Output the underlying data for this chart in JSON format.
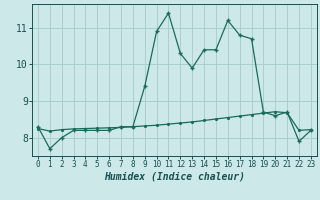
{
  "title": "",
  "xlabel": "Humidex (Indice chaleur)",
  "ylabel": "",
  "x_values": [
    0,
    1,
    2,
    3,
    4,
    5,
    6,
    7,
    8,
    9,
    10,
    11,
    12,
    13,
    14,
    15,
    16,
    17,
    18,
    19,
    20,
    21,
    22,
    23
  ],
  "line1_y": [
    8.3,
    7.7,
    8.0,
    8.2,
    8.2,
    8.2,
    8.2,
    8.3,
    8.3,
    9.4,
    10.9,
    11.4,
    10.3,
    9.9,
    10.4,
    10.4,
    11.2,
    10.8,
    10.7,
    8.7,
    8.6,
    8.7,
    7.9,
    8.2
  ],
  "line2_y": [
    8.25,
    8.18,
    8.22,
    8.24,
    8.25,
    8.26,
    8.27,
    8.28,
    8.3,
    8.32,
    8.34,
    8.37,
    8.4,
    8.43,
    8.47,
    8.51,
    8.55,
    8.59,
    8.63,
    8.67,
    8.71,
    8.68,
    8.2,
    8.22
  ],
  "bg_color": "#cce8e8",
  "grid_color": "#aacece",
  "line_color": "#1a6b5a",
  "tick_label_color": "#1a5050",
  "axis_color": "#1a5050",
  "xlabel_color": "#1a5050",
  "ylim": [
    7.5,
    11.65
  ],
  "yticks": [
    8,
    9,
    10,
    11
  ],
  "xticks": [
    0,
    1,
    2,
    3,
    4,
    5,
    6,
    7,
    8,
    9,
    10,
    11,
    12,
    13,
    14,
    15,
    16,
    17,
    18,
    19,
    20,
    21,
    22,
    23
  ]
}
